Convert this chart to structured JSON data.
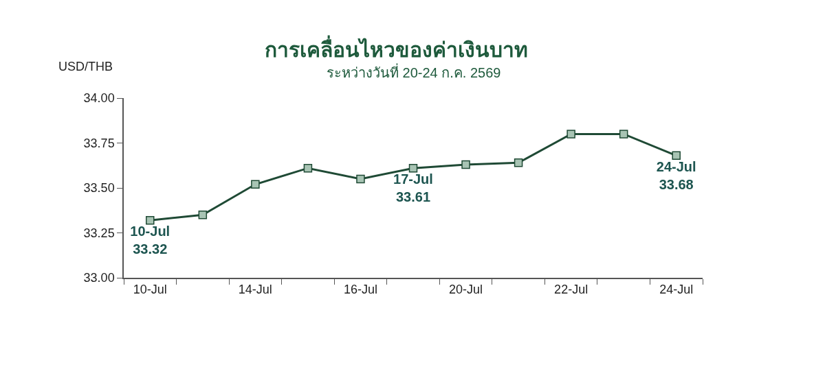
{
  "chart_data": {
    "type": "line",
    "title": "การเคลื่อนไหวของค่าเงินบาท",
    "subtitle": "ระหว่างวันที่ 20-24 ก.ค. 2569",
    "ylabel": "USD/THB",
    "categories": [
      "10-Jul",
      null,
      "14-Jul",
      null,
      "16-Jul",
      null,
      "20-Jul",
      null,
      "22-Jul",
      null,
      "24-Jul"
    ],
    "series": [
      {
        "color": "#1f4a35",
        "values": [
          33.32,
          33.35,
          33.52,
          33.61,
          33.55,
          33.61,
          33.63,
          33.64,
          33.8,
          33.8,
          33.68
        ],
        "value_labels": [
          "10-Jul\n33.32",
          null,
          null,
          null,
          null,
          "17-Jul\n33.61",
          null,
          null,
          null,
          null,
          "24-Jul\n33.68"
        ]
      }
    ],
    "ylim": [
      33.0,
      34.0
    ],
    "yticks": [
      {
        "value": 33.0,
        "label": "33.00"
      },
      {
        "value": 33.25,
        "label": "33.25"
      },
      {
        "value": 33.5,
        "label": "33.50"
      },
      {
        "value": 33.75,
        "label": "33.75"
      },
      {
        "value": 34.0,
        "label": "34.00"
      }
    ],
    "marker": "square",
    "line_style": "solid"
  }
}
